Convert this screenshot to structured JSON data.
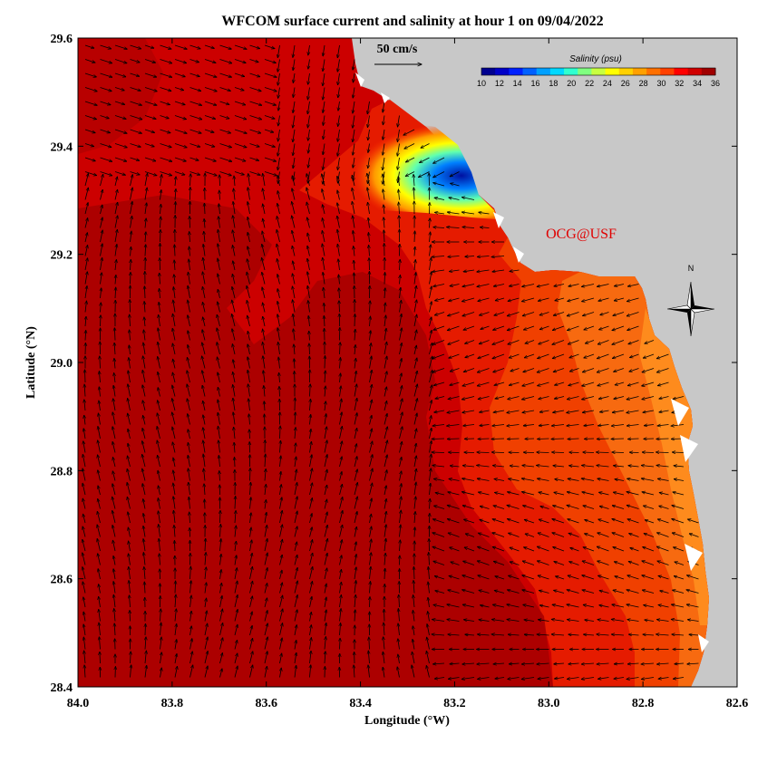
{
  "title": "WFCOM surface current and salinity at hour 1 on 09/04/2022",
  "xaxis": {
    "label": "Longitude (°W)",
    "ticks": [
      "84.0",
      "83.8",
      "83.6",
      "83.4",
      "83.2",
      "83.0",
      "82.8",
      "82.6"
    ],
    "range": [
      84.0,
      82.6
    ]
  },
  "yaxis": {
    "label": "Latitude (°N)",
    "ticks": [
      "29.6",
      "29.4",
      "29.2",
      "29.0",
      "28.8",
      "28.6",
      "28.4"
    ],
    "range": [
      28.4,
      29.6
    ]
  },
  "scale_arrow": {
    "label": "50 cm/s"
  },
  "colorbar": {
    "title": "Salinity (psu)",
    "ticks": [
      "10",
      "12",
      "14",
      "16",
      "18",
      "20",
      "22",
      "24",
      "26",
      "28",
      "30",
      "32",
      "34",
      "36"
    ],
    "colors": [
      "#00008f",
      "#0000c8",
      "#0020ff",
      "#0060ff",
      "#00a0ff",
      "#00d8ff",
      "#30ffd0",
      "#80ff80",
      "#c8ff40",
      "#ffff00",
      "#ffd000",
      "#ffa000",
      "#ff7000",
      "#ff4000",
      "#ff0000",
      "#d00000",
      "#a00000"
    ]
  },
  "credit": {
    "text": "OCG@USF",
    "color": "#e00000"
  },
  "north": {
    "label": "N"
  },
  "colors": {
    "land": "#c8c8c8",
    "sea_deep": "#a80000",
    "sea_main": "#cc0000",
    "sea_mid": "#e51b00",
    "sea_near": "#f04000",
    "sea_coast": "#f76a10"
  }
}
